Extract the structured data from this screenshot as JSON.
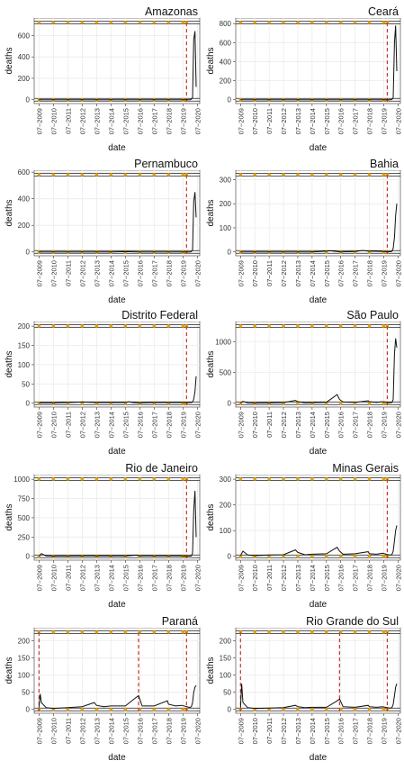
{
  "chart_data": [
    {
      "type": "line",
      "title": "Amazonas",
      "xlabel": "date",
      "ylabel": "deaths",
      "x_ticks": [
        "07−2009",
        "07−2010",
        "07−2011",
        "07−2012",
        "07−2013",
        "07−2014",
        "07−2015",
        "07−2016",
        "07−2017",
        "07−2018",
        "07−2019",
        "07−2020"
      ],
      "y_ticks": [
        0,
        200,
        400,
        600
      ],
      "ylim": [
        0,
        720
      ],
      "grid": true,
      "reference_lines_y": [
        0,
        720
      ],
      "marker_dates": [
        "2019-10"
      ],
      "series": [
        {
          "x": [
            "2009-07",
            "2010-07",
            "2011-07",
            "2012-07",
            "2013-07",
            "2014-07",
            "2015-07",
            "2016-07",
            "2017-07",
            "2018-07",
            "2019-07",
            "2019-12",
            "2020-01",
            "2020-02",
            "2020-03",
            "2020-04",
            "2020-05",
            "2020-06"
          ],
          "values": [
            0,
            0,
            0,
            0,
            0,
            0,
            0,
            0,
            0,
            0,
            0,
            0,
            0,
            5,
            20,
            560,
            640,
            120
          ]
        }
      ]
    },
    {
      "type": "line",
      "title": "Ceará",
      "xlabel": "date",
      "ylabel": "deaths",
      "x_ticks": [
        "07−2009",
        "07−2010",
        "07−2011",
        "07−2012",
        "07−2013",
        "07−2014",
        "07−2015",
        "07−2016",
        "07−2017",
        "07−2018",
        "07−2019",
        "07−2020"
      ],
      "y_ticks": [
        0,
        200,
        400,
        600,
        800
      ],
      "ylim": [
        0,
        810
      ],
      "grid": true,
      "reference_lines_y": [
        0,
        810
      ],
      "marker_dates": [
        "2019-10"
      ],
      "series": [
        {
          "x": [
            "2009-07",
            "2010-07",
            "2011-07",
            "2012-07",
            "2013-07",
            "2014-07",
            "2015-07",
            "2016-07",
            "2017-07",
            "2018-07",
            "2019-07",
            "2019-12",
            "2020-01",
            "2020-02",
            "2020-03",
            "2020-04",
            "2020-05",
            "2020-06"
          ],
          "values": [
            0,
            0,
            0,
            0,
            0,
            0,
            0,
            0,
            0,
            0,
            0,
            0,
            0,
            5,
            20,
            600,
            780,
            300
          ]
        }
      ]
    },
    {
      "type": "line",
      "title": "Pernambuco",
      "xlabel": "date",
      "ylabel": "deaths",
      "x_ticks": [
        "07−2009",
        "07−2010",
        "07−2011",
        "07−2012",
        "07−2013",
        "07−2014",
        "07−2015",
        "07−2016",
        "07−2017",
        "07−2018",
        "07−2019",
        "07−2020"
      ],
      "y_ticks": [
        0,
        200,
        400,
        600
      ],
      "ylim": [
        0,
        580
      ],
      "grid": true,
      "reference_lines_y": [
        0,
        580
      ],
      "marker_dates": [
        "2019-10"
      ],
      "series": [
        {
          "x": [
            "2009-07",
            "2010-07",
            "2011-07",
            "2012-07",
            "2013-07",
            "2014-07",
            "2015-07",
            "2016-07",
            "2017-07",
            "2018-07",
            "2019-07",
            "2019-12",
            "2020-01",
            "2020-02",
            "2020-03",
            "2020-04",
            "2020-05",
            "2020-06"
          ],
          "values": [
            0,
            0,
            0,
            0,
            0,
            0,
            2,
            0,
            0,
            0,
            0,
            0,
            0,
            3,
            15,
            380,
            450,
            260
          ]
        }
      ]
    },
    {
      "type": "line",
      "title": "Bahia",
      "xlabel": "date",
      "ylabel": "deaths",
      "x_ticks": [
        "07−2009",
        "07−2010",
        "07−2011",
        "07−2012",
        "07−2013",
        "07−2014",
        "07−2015",
        "07−2016",
        "07−2017",
        "07−2018",
        "07−2019",
        "07−2020"
      ],
      "y_ticks": [
        0,
        100,
        200,
        300
      ],
      "ylim": [
        0,
        320
      ],
      "grid": true,
      "reference_lines_y": [
        0,
        320
      ],
      "marker_dates": [
        "2019-10"
      ],
      "series": [
        {
          "x": [
            "2009-07",
            "2010-07",
            "2011-07",
            "2012-07",
            "2013-07",
            "2014-07",
            "2015-07",
            "2015-10",
            "2016-01",
            "2016-07",
            "2017-07",
            "2018-01",
            "2018-07",
            "2019-07",
            "2019-12",
            "2020-01",
            "2020-02",
            "2020-03",
            "2020-04",
            "2020-05",
            "2020-06"
          ],
          "values": [
            0,
            0,
            0,
            0,
            0,
            0,
            3,
            5,
            3,
            0,
            2,
            6,
            3,
            2,
            1,
            1,
            3,
            15,
            60,
            150,
            200
          ]
        }
      ]
    },
    {
      "type": "line",
      "title": "Distrito Federal",
      "xlabel": "date",
      "ylabel": "deaths",
      "x_ticks": [
        "07−2009",
        "07−2010",
        "07−2011",
        "07−2012",
        "07−2013",
        "07−2014",
        "07−2015",
        "07−2016",
        "07−2017",
        "07−2018",
        "07−2019",
        "07−2020"
      ],
      "y_ticks": [
        0,
        50,
        100,
        150,
        200
      ],
      "ylim": [
        0,
        200
      ],
      "grid": true,
      "reference_lines_y": [
        0,
        200
      ],
      "marker_dates": [
        "2019-10"
      ],
      "series": [
        {
          "x": [
            "2009-07",
            "2010-07",
            "2011-07",
            "2012-07",
            "2013-07",
            "2014-07",
            "2015-07",
            "2015-10",
            "2016-01",
            "2016-07",
            "2017-07",
            "2018-07",
            "2019-07",
            "2019-12",
            "2020-01",
            "2020-02",
            "2020-03",
            "2020-04",
            "2020-05",
            "2020-06"
          ],
          "values": [
            1,
            1,
            2,
            3,
            2,
            2,
            2,
            4,
            2,
            1,
            2,
            2,
            2,
            2,
            2,
            2,
            3,
            10,
            30,
            70
          ]
        }
      ]
    },
    {
      "type": "line",
      "title": "São Paulo",
      "xlabel": "date",
      "ylabel": "deaths",
      "x_ticks": [
        "07−2009",
        "07−2010",
        "07−2011",
        "07−2012",
        "07−2013",
        "07−2014",
        "07−2015",
        "07−2016",
        "07−2017",
        "07−2018",
        "07−2019",
        "07−2020"
      ],
      "y_ticks": [
        0,
        500,
        1000
      ],
      "ylim": [
        0,
        1250
      ],
      "grid": true,
      "reference_lines_y": [
        0,
        1250
      ],
      "marker_dates": [
        "2019-10"
      ],
      "series": [
        {
          "x": [
            "2009-07",
            "2009-09",
            "2010-01",
            "2010-07",
            "2011-07",
            "2012-07",
            "2013-05",
            "2013-07",
            "2014-01",
            "2014-07",
            "2015-07",
            "2016-04",
            "2016-06",
            "2016-09",
            "2017-07",
            "2018-06",
            "2018-07",
            "2019-01",
            "2019-06",
            "2019-12",
            "2020-01",
            "2020-02",
            "2020-03",
            "2020-04",
            "2020-05",
            "2020-06"
          ],
          "values": [
            5,
            30,
            8,
            5,
            8,
            10,
            45,
            25,
            8,
            10,
            15,
            140,
            60,
            20,
            15,
            40,
            25,
            15,
            25,
            10,
            10,
            15,
            60,
            800,
            1050,
            900
          ]
        }
      ]
    },
    {
      "type": "line",
      "title": "Rio de Janeiro",
      "xlabel": "date",
      "ylabel": "deaths",
      "x_ticks": [
        "07−2009",
        "07−2010",
        "07−2011",
        "07−2012",
        "07−2013",
        "07−2014",
        "07−2015",
        "07−2016",
        "07−2017",
        "07−2018",
        "07−2019",
        "07−2020"
      ],
      "y_ticks": [
        0,
        250,
        500,
        750,
        1000
      ],
      "ylim": [
        0,
        1000
      ],
      "grid": true,
      "reference_lines_y": [
        0,
        1000
      ],
      "marker_dates": [
        "2019-10"
      ],
      "series": [
        {
          "x": [
            "2009-07",
            "2009-09",
            "2010-01",
            "2010-07",
            "2011-07",
            "2012-07",
            "2013-07",
            "2014-07",
            "2015-07",
            "2016-04",
            "2016-07",
            "2017-07",
            "2018-07",
            "2019-07",
            "2019-12",
            "2020-01",
            "2020-02",
            "2020-03",
            "2020-04",
            "2020-05",
            "2020-06"
          ],
          "values": [
            2,
            35,
            5,
            3,
            4,
            5,
            5,
            5,
            5,
            15,
            5,
            5,
            6,
            5,
            3,
            3,
            5,
            40,
            600,
            850,
            250
          ]
        }
      ]
    },
    {
      "type": "line",
      "title": "Minas Gerais",
      "xlabel": "date",
      "ylabel": "deaths",
      "x_ticks": [
        "07−2009",
        "07−2010",
        "07−2011",
        "07−2012",
        "07−2013",
        "07−2014",
        "07−2015",
        "07−2016",
        "07−2017",
        "07−2018",
        "07−2019",
        "07−2020"
      ],
      "y_ticks": [
        0,
        100,
        200,
        300
      ],
      "ylim": [
        0,
        300
      ],
      "grid": true,
      "reference_lines_y": [
        0,
        300
      ],
      "marker_dates": [
        "2019-10"
      ],
      "series": [
        {
          "x": [
            "2009-07",
            "2009-09",
            "2010-01",
            "2010-07",
            "2011-07",
            "2012-07",
            "2013-05",
            "2013-07",
            "2014-01",
            "2014-07",
            "2015-07",
            "2016-04",
            "2016-06",
            "2016-09",
            "2017-07",
            "2018-06",
            "2018-07",
            "2019-01",
            "2019-06",
            "2019-12",
            "2020-01",
            "2020-02",
            "2020-03",
            "2020-04",
            "2020-05",
            "2020-06"
          ],
          "values": [
            3,
            20,
            5,
            3,
            5,
            6,
            25,
            15,
            6,
            8,
            10,
            35,
            20,
            8,
            10,
            18,
            10,
            8,
            12,
            5,
            5,
            8,
            20,
            60,
            100,
            120
          ]
        }
      ]
    },
    {
      "type": "line",
      "title": "Paraná",
      "xlabel": "date",
      "ylabel": "deaths",
      "x_ticks": [
        "07−2009",
        "07−2010",
        "07−2011",
        "07−2012",
        "07−2013",
        "07−2014",
        "07−2015",
        "07−2016",
        "07−2017",
        "07−2018",
        "07−2019",
        "07−2020"
      ],
      "y_ticks": [
        0,
        50,
        100,
        150,
        200
      ],
      "ylim": [
        0,
        225
      ],
      "grid": true,
      "reference_lines_y": [
        0,
        225
      ],
      "marker_dates": [
        "2009-07",
        "2016-06",
        "2019-10"
      ],
      "series": [
        {
          "x": [
            "2009-07",
            "2009-08",
            "2009-09",
            "2010-01",
            "2010-07",
            "2011-07",
            "2012-07",
            "2013-05",
            "2013-07",
            "2014-01",
            "2014-07",
            "2015-07",
            "2016-04",
            "2016-06",
            "2016-09",
            "2017-07",
            "2018-06",
            "2018-07",
            "2019-01",
            "2019-06",
            "2019-12",
            "2020-01",
            "2020-02",
            "2020-03",
            "2020-04",
            "2020-05",
            "2020-06"
          ],
          "values": [
            5,
            45,
            20,
            5,
            3,
            5,
            8,
            20,
            12,
            8,
            10,
            10,
            35,
            40,
            10,
            10,
            25,
            15,
            10,
            12,
            6,
            6,
            8,
            20,
            50,
            65,
            70
          ]
        }
      ]
    },
    {
      "type": "line",
      "title": "Rio Grande do Sul",
      "xlabel": "date",
      "ylabel": "deaths",
      "x_ticks": [
        "07−2009",
        "07−2010",
        "07−2011",
        "07−2012",
        "07−2013",
        "07−2014",
        "07−2015",
        "07−2016",
        "07−2017",
        "07−2018",
        "07−2019",
        "07−2020"
      ],
      "y_ticks": [
        0,
        50,
        100,
        150,
        200
      ],
      "ylim": [
        0,
        225
      ],
      "grid": true,
      "reference_lines_y": [
        0,
        225
      ],
      "marker_dates": [
        "2009-07",
        "2016-06",
        "2019-10"
      ],
      "series": [
        {
          "x": [
            "2009-07",
            "2009-08",
            "2009-09",
            "2010-01",
            "2010-07",
            "2011-07",
            "2012-07",
            "2013-05",
            "2013-07",
            "2014-01",
            "2014-07",
            "2015-07",
            "2016-04",
            "2016-06",
            "2016-09",
            "2017-07",
            "2018-06",
            "2018-07",
            "2019-01",
            "2019-06",
            "2019-12",
            "2020-01",
            "2020-02",
            "2020-03",
            "2020-04",
            "2020-05",
            "2020-06"
          ],
          "values": [
            5,
            75,
            20,
            5,
            3,
            4,
            5,
            12,
            8,
            5,
            6,
            6,
            25,
            30,
            8,
            6,
            12,
            8,
            6,
            8,
            4,
            4,
            6,
            15,
            40,
            65,
            75
          ]
        }
      ]
    }
  ],
  "colors": {
    "series_line": "#111111",
    "marker_line": "#c0392b",
    "marker_points": "#e69f00",
    "grid": "#ebebeb",
    "frame": "#333333"
  }
}
